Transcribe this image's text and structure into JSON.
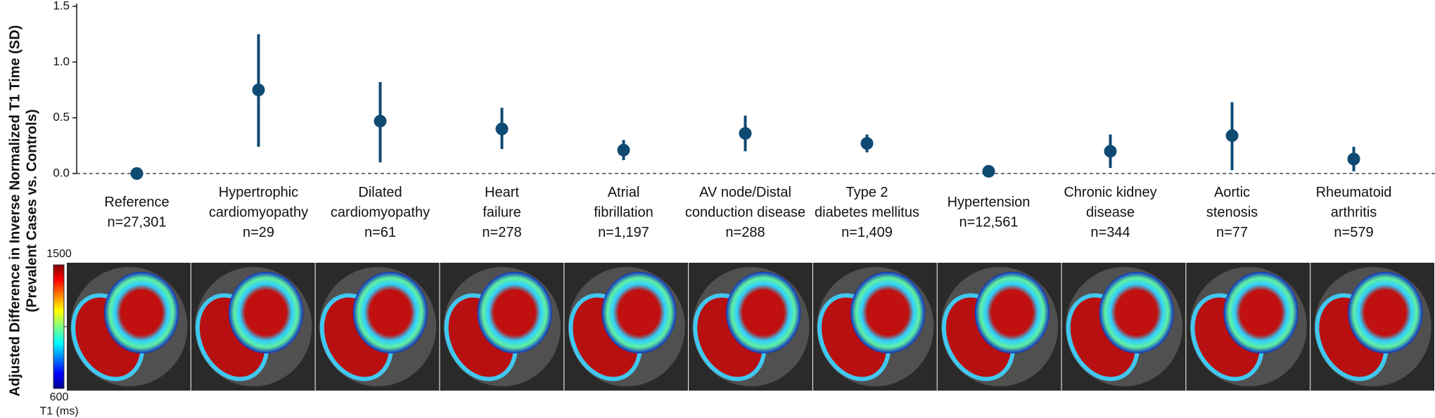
{
  "chart_data": {
    "type": "errorbar",
    "ylabel": [
      "Adjusted Difference in Inverse Normalized T1 Time (SD)",
      "(Prevalent Cases vs. Controls)"
    ],
    "categories": [
      [
        "Reference",
        "n=27,301"
      ],
      [
        "Hypertrophic",
        "cardiomyopathy",
        "n=29"
      ],
      [
        "Dilated",
        "cardiomyopathy",
        "n=61"
      ],
      [
        "Heart",
        "failure",
        "n=278"
      ],
      [
        "Atrial",
        "fibrillation",
        "n=1,197"
      ],
      [
        "AV node/Distal",
        "conduction disease",
        "n=288"
      ],
      [
        "Type 2",
        "diabetes mellitus",
        "n=1,409"
      ],
      [
        "Hypertension",
        "n=12,561"
      ],
      [
        "Chronic kidney",
        "disease",
        "n=344"
      ],
      [
        "Aortic",
        "stenosis",
        "n=77"
      ],
      [
        "Rheumatoid",
        "arthritis",
        "n=579"
      ]
    ],
    "series": [
      {
        "color": "#0f4a73",
        "values": [
          0,
          0.75,
          0.47,
          0.4,
          0.21,
          0.36,
          0.27,
          0.02,
          0.2,
          0.34,
          0.13
        ],
        "lower": [
          0,
          0.24,
          0.1,
          0.22,
          0.12,
          0.2,
          0.19,
          0.01,
          0.05,
          0.03,
          0.02
        ],
        "upper": [
          0,
          1.25,
          0.82,
          0.59,
          0.3,
          0.52,
          0.35,
          0.03,
          0.35,
          0.64,
          0.24
        ]
      }
    ],
    "ylim": [
      0,
      1.5
    ],
    "yticks": [
      {
        "value": 0,
        "label": "0.0"
      },
      0.5,
      {
        "value": 1,
        "label": "1.0"
      },
      1.5
    ],
    "reference_line": 0,
    "colorbar": {
      "label": "T1 (ms)",
      "range": [
        600,
        1500
      ]
    }
  }
}
